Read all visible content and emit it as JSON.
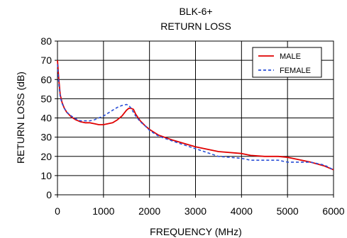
{
  "chart_data": {
    "type": "line",
    "title": "BLK-6+",
    "subtitle": "RETURN LOSS",
    "xlabel": "FREQUENCY (MHz)",
    "ylabel": "RETURN LOSS (dB)",
    "xlim": [
      0,
      6000
    ],
    "ylim": [
      0,
      80
    ],
    "xticks": [
      0,
      1000,
      2000,
      3000,
      4000,
      5000,
      6000
    ],
    "yticks": [
      0,
      10,
      20,
      30,
      40,
      50,
      60,
      70,
      80
    ],
    "xtick_labels": [
      "0",
      "1000",
      "2000",
      "3000",
      "4000",
      "5000",
      "6000"
    ],
    "ytick_labels": [
      "0",
      "10",
      "20",
      "30",
      "40",
      "50",
      "60",
      "70",
      "80"
    ],
    "grid": true,
    "legend_position": "top-right",
    "series": [
      {
        "name": "MALE",
        "color": "#e00000",
        "dash": "solid",
        "x": [
          0,
          30,
          60,
          100,
          150,
          200,
          300,
          400,
          500,
          600,
          700,
          800,
          900,
          1000,
          1100,
          1200,
          1300,
          1400,
          1500,
          1550,
          1600,
          1650,
          1700,
          1800,
          1900,
          2000,
          2200,
          2500,
          3000,
          3500,
          4000,
          4200,
          4500,
          4800,
          5000,
          5200,
          5500,
          5800,
          6000
        ],
        "y": [
          70,
          60,
          52,
          48,
          45,
          43,
          40.5,
          39,
          38,
          37.5,
          37.5,
          37,
          36.5,
          36.5,
          37,
          37.5,
          39,
          41,
          44,
          45,
          45,
          44.5,
          42,
          38.5,
          36,
          34,
          31,
          28.5,
          25,
          22.5,
          21.5,
          20.5,
          20,
          20,
          19.5,
          18.5,
          17,
          15,
          13
        ]
      },
      {
        "name": "FEMALE",
        "color": "#2a4fd6",
        "dash": "dashed",
        "x": [
          0,
          30,
          60,
          100,
          150,
          200,
          300,
          400,
          500,
          600,
          700,
          800,
          900,
          1000,
          1100,
          1200,
          1300,
          1400,
          1500,
          1550,
          1600,
          1650,
          1700,
          1800,
          1900,
          2000,
          2200,
          2500,
          3000,
          3500,
          4000,
          4200,
          4500,
          4800,
          5000,
          5200,
          5500,
          5800,
          6000
        ],
        "y": [
          68,
          58,
          51,
          47.5,
          45,
          43,
          41,
          39.5,
          38.5,
          38.5,
          38.5,
          39,
          40,
          41,
          42.5,
          44,
          45.5,
          46.5,
          47,
          46.5,
          45,
          43,
          41,
          38,
          36,
          33.5,
          30.5,
          28,
          24,
          20,
          19,
          18,
          18,
          18,
          17,
          17,
          17,
          15.5,
          13
        ]
      }
    ]
  }
}
